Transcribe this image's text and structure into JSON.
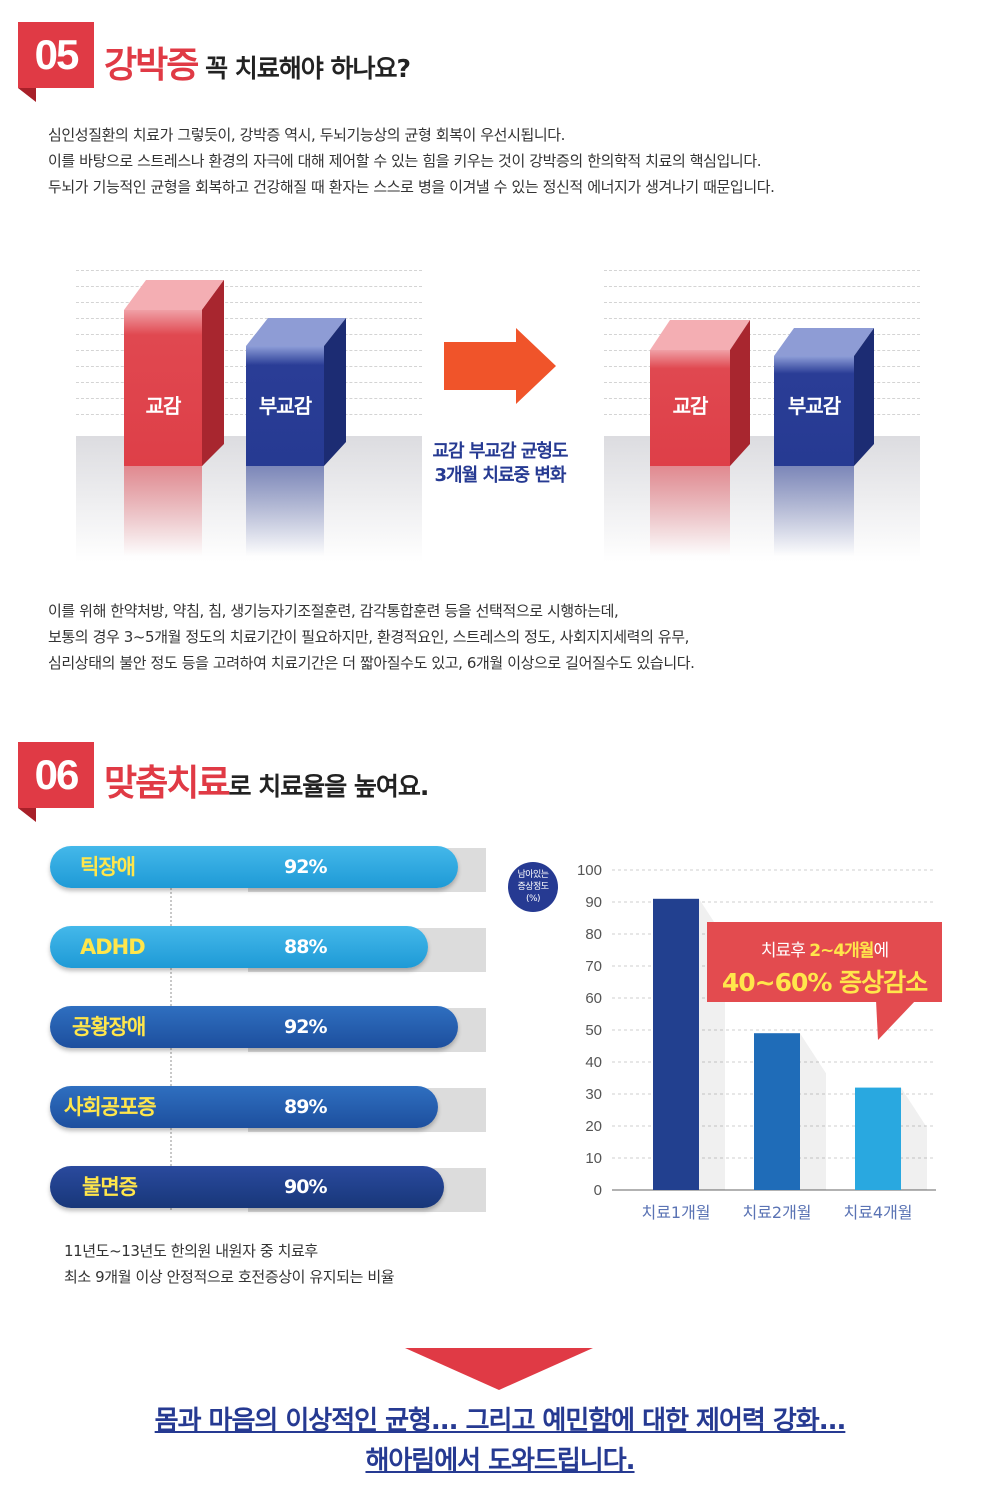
{
  "section5": {
    "number": "05",
    "title_highlight": "강박증",
    "title_rest": " 꼭 치료해야 하나요?",
    "intro_lines": [
      "심인성질환의 치료가 그렇듯이, 강박증 역시, 두뇌기능상의 균형 회복이 우선시됩니다.",
      "이를 바탕으로 스트레스나 환경의 자극에 대해 제어할 수 있는 힘을 키우는 것이 강박증의 한의학적 치료의 핵심입니다.",
      "두뇌가 기능적인 균형을 회복하고 건강해질 때 환자는 스스로 병을 이겨낼 수 있는 정신적 에너지가 생겨나기 때문입니다."
    ],
    "balance_caption": [
      "교감 부교감 균형도",
      "3개월 치료중 변화"
    ],
    "bar_labels": {
      "sympathetic": "교감",
      "parasympathetic": "부교감"
    },
    "body_lines": [
      "이를 위해 한약처방, 약침, 침, 생기능자기조절훈련, 감각통합훈련 등을 선택적으로 시행하는데,",
      "보통의 경우 3~5개월 정도의 치료기간이 필요하지만, 환경적요인, 스트레스의 정도, 사회지지세력의 유무,",
      "심리상태의 불안 정도 등을 고려하여 치료기간은 더 짧아질수도 있고, 6개월 이상으로 길어질수도 있습니다."
    ]
  },
  "section6": {
    "number": "06",
    "title_highlight": "맞춤치료",
    "title_rest": "로 치료율을 높여요.",
    "rates": [
      {
        "name": "틱장애",
        "value": "92%"
      },
      {
        "name": "ADHD",
        "value": "88%"
      },
      {
        "name": "공황장애",
        "value": "92%"
      },
      {
        "name": "사회공포증",
        "value": "89%"
      },
      {
        "name": "불면증",
        "value": "90%"
      }
    ],
    "rates_note": [
      "11년도~13년도 한의원 내원자 중 치료후",
      "최소 9개월 이상 안정적으로 호전증상이 유지되는 비율"
    ],
    "chart_ylabel_lines": [
      "남아있는",
      "증상정도",
      "(%)"
    ],
    "callout_line1_pre": "치료후 ",
    "callout_line1_hl": "2~4개월",
    "callout_line1_post": "에",
    "callout_line2": "40~60% 증상감소"
  },
  "conclusion": {
    "line1": "몸과 마음의 이상적인 균형... 그리고 예민함에 대한 제어력 강화...",
    "line2": "해아림에서 도와드립니다."
  },
  "colors": {
    "accent_red": "#e03a45",
    "arrow_orange": "#f0542a",
    "navy": "#263a92",
    "bar1": "#22408f",
    "bar2": "#1f6cb8",
    "bar3": "#29a8e0"
  },
  "chart_data": [
    {
      "type": "bar",
      "ylabel": "남아있는 증상정도 (%)",
      "categories": [
        "치료1개월",
        "치료2개월",
        "치료4개월"
      ],
      "values": [
        91,
        49,
        32
      ],
      "ylim": [
        0,
        100
      ],
      "yticks": [
        0,
        10,
        20,
        30,
        40,
        50,
        60,
        70,
        80,
        90,
        100
      ],
      "grid": true
    },
    {
      "type": "bar",
      "title": "교감 부교감 균형도 3개월 치료중 변화",
      "categories": [
        "교감",
        "부교감"
      ],
      "series": [
        {
          "values": [
            100,
            80
          ]
        },
        {
          "values": [
            77,
            72
          ]
        }
      ],
      "grid": true
    }
  ]
}
